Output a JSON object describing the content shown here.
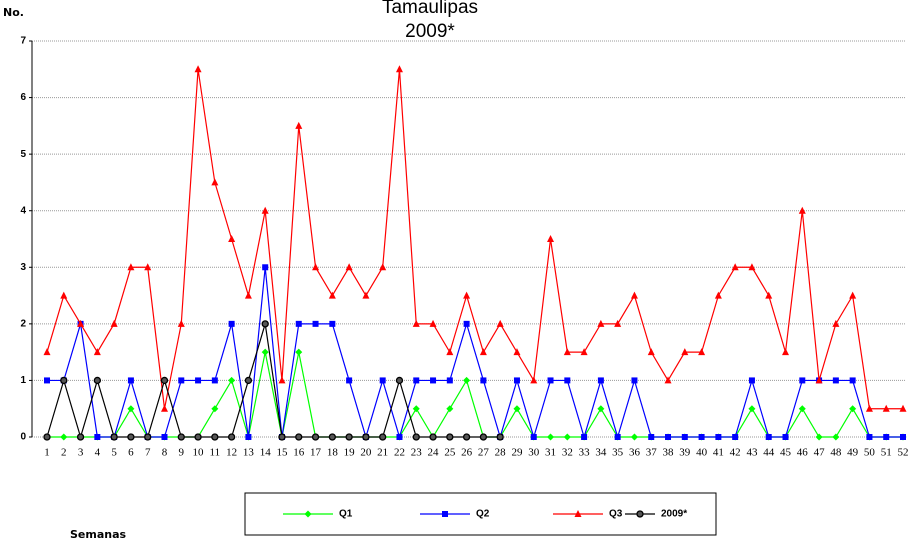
{
  "chart_data": {
    "type": "line",
    "title": "Tamaulipas",
    "subtitle": "2009*",
    "y_label": "No.",
    "x_label": "Semanas",
    "categories": [
      1,
      2,
      3,
      4,
      5,
      6,
      7,
      8,
      9,
      10,
      11,
      12,
      13,
      14,
      15,
      16,
      17,
      18,
      19,
      20,
      21,
      22,
      23,
      24,
      25,
      26,
      27,
      28,
      29,
      30,
      31,
      32,
      33,
      34,
      35,
      36,
      37,
      38,
      39,
      40,
      41,
      42,
      43,
      44,
      45,
      46,
      47,
      48,
      49,
      50,
      51,
      52
    ],
    "ylim": [
      0,
      7
    ],
    "yticks": [
      0,
      1,
      2,
      3,
      4,
      5,
      6,
      7
    ],
    "grid": true,
    "legend": "bottom",
    "series": [
      {
        "name": "Q1",
        "color": "#00ff00",
        "marker": "diamond",
        "values": [
          0,
          0,
          0,
          0,
          0,
          0.5,
          0,
          0,
          0,
          0,
          0.5,
          1,
          0,
          1.5,
          0,
          1.5,
          0,
          0,
          0,
          0,
          0,
          0,
          0.5,
          0,
          0.5,
          1,
          0,
          0,
          0.5,
          0,
          0,
          0,
          0,
          0.5,
          0,
          0,
          0,
          0,
          0,
          0,
          0,
          0,
          0.5,
          0,
          0,
          0.5,
          0,
          0,
          0.5,
          0,
          0,
          0
        ]
      },
      {
        "name": "Q2",
        "color": "#0000ff",
        "marker": "square",
        "values": [
          1,
          1,
          2,
          0,
          0,
          1,
          0,
          0,
          1,
          1,
          1,
          2,
          0,
          3,
          0,
          2,
          2,
          2,
          1,
          0,
          1,
          0,
          1,
          1,
          1,
          2,
          1,
          0,
          1,
          0,
          1,
          1,
          0,
          1,
          0,
          1,
          0,
          0,
          0,
          0,
          0,
          0,
          1,
          0,
          0,
          1,
          1,
          1,
          1,
          0,
          0,
          0
        ]
      },
      {
        "name": "Q3",
        "color": "#ff0000",
        "marker": "triangle",
        "values": [
          1.5,
          2.5,
          2,
          1.5,
          2,
          3,
          3,
          0.5,
          2,
          6.5,
          4.5,
          3.5,
          2.5,
          4,
          1,
          5.5,
          3,
          2.5,
          3,
          2.5,
          3,
          6.5,
          2,
          2,
          1.5,
          2.5,
          1.5,
          2,
          1.5,
          1,
          3.5,
          1.5,
          1.5,
          2,
          2,
          2.5,
          1.5,
          1,
          1.5,
          1.5,
          2.5,
          3,
          3,
          2.5,
          1.5,
          4,
          1,
          2,
          2.5,
          0.5,
          0.5,
          0.5
        ]
      },
      {
        "name": "2009*",
        "color": "#000000",
        "marker": "circle",
        "values": [
          0,
          1,
          0,
          1,
          0,
          0,
          0,
          1,
          0,
          0,
          0,
          0,
          1,
          2,
          0,
          0,
          0,
          0,
          0,
          0,
          0,
          1,
          0,
          0,
          0,
          0,
          0,
          0,
          null,
          null,
          null,
          null,
          null,
          null,
          null,
          null,
          null,
          null,
          null,
          null,
          null,
          null,
          null,
          null,
          null,
          null,
          null,
          null,
          null,
          null,
          null,
          null
        ]
      }
    ]
  }
}
